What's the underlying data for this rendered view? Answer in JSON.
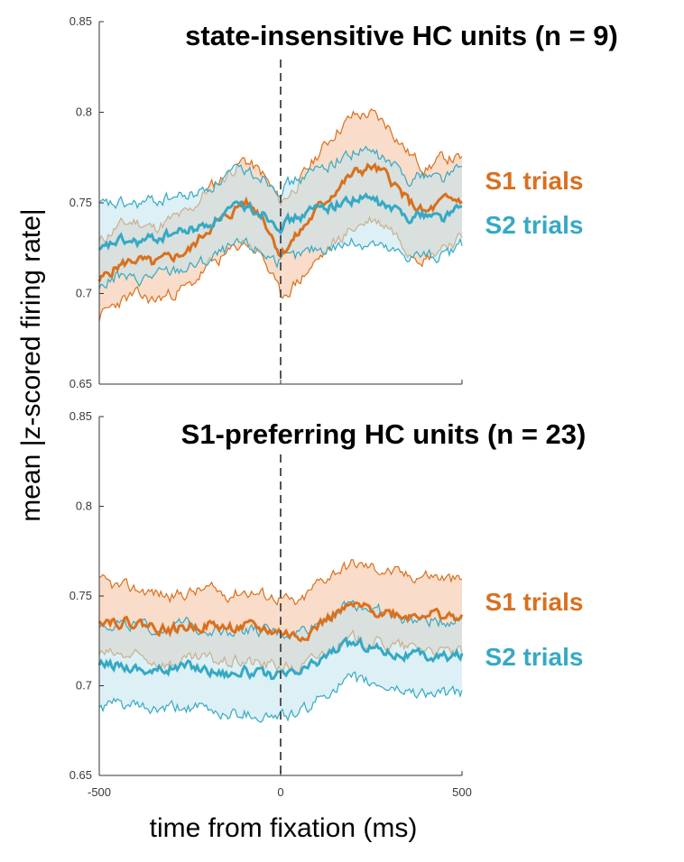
{
  "colors": {
    "s1": "#D9701E",
    "s2": "#35A9C4",
    "s1_fill": "#F8D6C0",
    "s2_fill": "#BFE3EC",
    "axis": "#333333",
    "zero_line": "#555555"
  },
  "chart_data": [
    {
      "type": "line",
      "title": "state-insensitive HC units (n = 9)",
      "xlabel": "time from fixation (ms)",
      "ylabel": "mean |z-scored firing rate|",
      "xlim": [
        -500,
        500
      ],
      "ylim": [
        0.65,
        0.85
      ],
      "yticks": [
        "0.65",
        "0.7",
        "0.75",
        "0.8",
        "0.85"
      ],
      "xticks": [
        "-500",
        "0",
        "500"
      ],
      "show_xticks": false,
      "grid": false,
      "legend_position": "right",
      "x": [
        -500,
        -450,
        -400,
        -350,
        -300,
        -250,
        -200,
        -150,
        -100,
        -50,
        0,
        50,
        100,
        150,
        200,
        250,
        300,
        350,
        400,
        450,
        500
      ],
      "series": [
        {
          "name": "S1 trials",
          "color": "#D9701E",
          "mean": [
            0.707,
            0.715,
            0.719,
            0.716,
            0.72,
            0.724,
            0.736,
            0.742,
            0.751,
            0.743,
            0.722,
            0.733,
            0.746,
            0.757,
            0.766,
            0.77,
            0.764,
            0.751,
            0.744,
            0.751,
            0.752
          ],
          "upper": [
            0.728,
            0.737,
            0.74,
            0.736,
            0.741,
            0.745,
            0.758,
            0.765,
            0.774,
            0.766,
            0.75,
            0.761,
            0.776,
            0.789,
            0.798,
            0.799,
            0.792,
            0.778,
            0.769,
            0.775,
            0.774
          ],
          "lower": [
            0.687,
            0.695,
            0.699,
            0.696,
            0.7,
            0.704,
            0.715,
            0.721,
            0.729,
            0.721,
            0.698,
            0.707,
            0.718,
            0.728,
            0.736,
            0.741,
            0.737,
            0.725,
            0.719,
            0.727,
            0.73
          ]
        },
        {
          "name": "S2 trials",
          "color": "#35A9C4",
          "mean": [
            0.722,
            0.729,
            0.728,
            0.73,
            0.733,
            0.735,
            0.738,
            0.745,
            0.748,
            0.745,
            0.738,
            0.742,
            0.747,
            0.749,
            0.752,
            0.752,
            0.747,
            0.743,
            0.744,
            0.742,
            0.748
          ],
          "upper": [
            0.748,
            0.749,
            0.749,
            0.751,
            0.753,
            0.754,
            0.758,
            0.765,
            0.768,
            0.765,
            0.758,
            0.763,
            0.768,
            0.773,
            0.778,
            0.778,
            0.772,
            0.764,
            0.766,
            0.764,
            0.77
          ],
          "lower": [
            0.703,
            0.71,
            0.707,
            0.71,
            0.712,
            0.715,
            0.718,
            0.724,
            0.727,
            0.723,
            0.717,
            0.72,
            0.725,
            0.726,
            0.728,
            0.728,
            0.723,
            0.721,
            0.721,
            0.72,
            0.727
          ]
        }
      ]
    },
    {
      "type": "line",
      "title": "S1-preferring HC units (n = 23)",
      "xlabel": "time from fixation (ms)",
      "ylabel": "mean |z-scored firing rate|",
      "xlim": [
        -500,
        500
      ],
      "ylim": [
        0.65,
        0.85
      ],
      "yticks": [
        "0.65",
        "0.7",
        "0.75",
        "0.8",
        "0.85"
      ],
      "xticks": [
        "-500",
        "0",
        "500"
      ],
      "show_xticks": true,
      "grid": false,
      "legend_position": "right",
      "x": [
        -500,
        -450,
        -400,
        -350,
        -300,
        -250,
        -200,
        -150,
        -100,
        -50,
        0,
        50,
        100,
        150,
        200,
        250,
        300,
        350,
        400,
        450,
        500
      ],
      "series": [
        {
          "name": "S1 trials",
          "color": "#D9701E",
          "mean": [
            0.738,
            0.736,
            0.735,
            0.733,
            0.731,
            0.733,
            0.734,
            0.732,
            0.733,
            0.731,
            0.73,
            0.727,
            0.733,
            0.74,
            0.744,
            0.742,
            0.741,
            0.739,
            0.741,
            0.739,
            0.737
          ],
          "upper": [
            0.758,
            0.755,
            0.754,
            0.752,
            0.75,
            0.752,
            0.754,
            0.751,
            0.753,
            0.751,
            0.749,
            0.745,
            0.757,
            0.764,
            0.768,
            0.766,
            0.764,
            0.761,
            0.762,
            0.76,
            0.758
          ],
          "lower": [
            0.718,
            0.717,
            0.716,
            0.714,
            0.712,
            0.714,
            0.715,
            0.713,
            0.714,
            0.712,
            0.711,
            0.709,
            0.716,
            0.722,
            0.726,
            0.724,
            0.723,
            0.721,
            0.721,
            0.719,
            0.718
          ]
        },
        {
          "name": "S2 trials",
          "color": "#35A9C4",
          "mean": [
            0.711,
            0.712,
            0.71,
            0.708,
            0.71,
            0.711,
            0.709,
            0.707,
            0.708,
            0.706,
            0.705,
            0.707,
            0.713,
            0.72,
            0.724,
            0.722,
            0.719,
            0.717,
            0.716,
            0.716,
            0.717
          ],
          "upper": [
            0.734,
            0.735,
            0.733,
            0.731,
            0.733,
            0.734,
            0.732,
            0.731,
            0.732,
            0.73,
            0.729,
            0.73,
            0.735,
            0.742,
            0.746,
            0.743,
            0.739,
            0.737,
            0.736,
            0.736,
            0.738
          ],
          "lower": [
            0.687,
            0.69,
            0.688,
            0.686,
            0.687,
            0.688,
            0.686,
            0.684,
            0.685,
            0.683,
            0.683,
            0.684,
            0.691,
            0.7,
            0.703,
            0.701,
            0.699,
            0.697,
            0.696,
            0.695,
            0.696
          ]
        }
      ]
    }
  ]
}
